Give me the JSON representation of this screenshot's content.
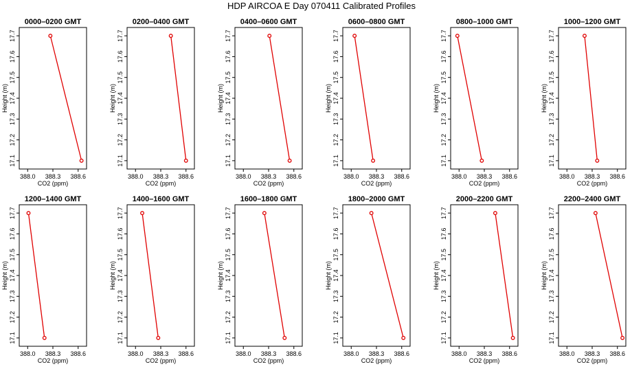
{
  "title": "HDP AIRCOA E  Day 070411  Calibrated Profiles",
  "colors": {
    "series": "#e00000",
    "axis": "#000000",
    "frame": "#000000"
  },
  "chart_data": [
    {
      "type": "line",
      "title": "0000–0200 GMT",
      "xlabel": "CO2 (ppm)",
      "ylabel": "Height (m)",
      "xlim": [
        387.9,
        388.7
      ],
      "ylim": [
        17.06,
        17.74
      ],
      "x_ticks": [
        "388.0",
        "388.3",
        "388.6"
      ],
      "y_ticks": [
        "17.1",
        "17.2",
        "17.3",
        "17.4",
        "17.5",
        "17.6",
        "17.7"
      ],
      "points": [
        {
          "x": 388.27,
          "y": 17.7
        },
        {
          "x": 388.64,
          "y": 17.1
        }
      ]
    },
    {
      "type": "line",
      "title": "0200–0400 GMT",
      "xlabel": "CO2 (ppm)",
      "ylabel": "Height (m)",
      "xlim": [
        387.9,
        388.7
      ],
      "ylim": [
        17.06,
        17.74
      ],
      "x_ticks": [
        "388.0",
        "388.3",
        "388.6"
      ],
      "y_ticks": [
        "17.1",
        "17.2",
        "17.3",
        "17.4",
        "17.5",
        "17.6",
        "17.7"
      ],
      "points": [
        {
          "x": 388.42,
          "y": 17.7
        },
        {
          "x": 388.6,
          "y": 17.1
        }
      ]
    },
    {
      "type": "line",
      "title": "0400–0600 GMT",
      "xlabel": "CO2 (ppm)",
      "ylabel": "Height (m)",
      "xlim": [
        387.9,
        388.7
      ],
      "ylim": [
        17.06,
        17.74
      ],
      "x_ticks": [
        "388.0",
        "388.3",
        "388.6"
      ],
      "y_ticks": [
        "17.1",
        "17.2",
        "17.3",
        "17.4",
        "17.5",
        "17.6",
        "17.7"
      ],
      "points": [
        {
          "x": 388.31,
          "y": 17.7
        },
        {
          "x": 388.55,
          "y": 17.1
        }
      ]
    },
    {
      "type": "line",
      "title": "0600–0800 GMT",
      "xlabel": "CO2 (ppm)",
      "ylabel": "Height (m)",
      "xlim": [
        387.9,
        388.7
      ],
      "ylim": [
        17.06,
        17.74
      ],
      "x_ticks": [
        "388.0",
        "388.3",
        "388.6"
      ],
      "y_ticks": [
        "17.1",
        "17.2",
        "17.3",
        "17.4",
        "17.5",
        "17.6",
        "17.7"
      ],
      "points": [
        {
          "x": 388.04,
          "y": 17.7
        },
        {
          "x": 388.26,
          "y": 17.1
        }
      ]
    },
    {
      "type": "line",
      "title": "0800–1000 GMT",
      "xlabel": "CO2 (ppm)",
      "ylabel": "Height (m)",
      "xlim": [
        387.9,
        388.7
      ],
      "ylim": [
        17.06,
        17.74
      ],
      "x_ticks": [
        "388.0",
        "388.3",
        "388.6"
      ],
      "y_ticks": [
        "17.1",
        "17.2",
        "17.3",
        "17.4",
        "17.5",
        "17.6",
        "17.7"
      ],
      "points": [
        {
          "x": 387.98,
          "y": 17.7
        },
        {
          "x": 388.27,
          "y": 17.1
        }
      ]
    },
    {
      "type": "line",
      "title": "1000–1200 GMT",
      "xlabel": "CO2 (ppm)",
      "ylabel": "Height (m)",
      "xlim": [
        387.9,
        388.7
      ],
      "ylim": [
        17.06,
        17.74
      ],
      "x_ticks": [
        "388.0",
        "388.3",
        "388.6"
      ],
      "y_ticks": [
        "17.1",
        "17.2",
        "17.3",
        "17.4",
        "17.5",
        "17.6",
        "17.7"
      ],
      "points": [
        {
          "x": 388.21,
          "y": 17.7
        },
        {
          "x": 388.36,
          "y": 17.1
        }
      ]
    },
    {
      "type": "line",
      "title": "1200–1400 GMT",
      "xlabel": "CO2 (ppm)",
      "ylabel": "Height (m)",
      "xlim": [
        387.9,
        388.7
      ],
      "ylim": [
        17.06,
        17.74
      ],
      "x_ticks": [
        "388.0",
        "388.3",
        "388.6"
      ],
      "y_ticks": [
        "17.1",
        "17.2",
        "17.3",
        "17.4",
        "17.5",
        "17.6",
        "17.7"
      ],
      "points": [
        {
          "x": 388.01,
          "y": 17.7
        },
        {
          "x": 388.2,
          "y": 17.1
        }
      ]
    },
    {
      "type": "line",
      "title": "1400–1600 GMT",
      "xlabel": "CO2 (ppm)",
      "ylabel": "Height (m)",
      "xlim": [
        387.9,
        388.7
      ],
      "ylim": [
        17.06,
        17.74
      ],
      "x_ticks": [
        "388.0",
        "388.3",
        "388.6"
      ],
      "y_ticks": [
        "17.1",
        "17.2",
        "17.3",
        "17.4",
        "17.5",
        "17.6",
        "17.7"
      ],
      "points": [
        {
          "x": 388.08,
          "y": 17.7
        },
        {
          "x": 388.27,
          "y": 17.1
        }
      ]
    },
    {
      "type": "line",
      "title": "1600–1800 GMT",
      "xlabel": "CO2 (ppm)",
      "ylabel": "Height (m)",
      "xlim": [
        387.9,
        388.7
      ],
      "ylim": [
        17.06,
        17.74
      ],
      "x_ticks": [
        "388.0",
        "388.3",
        "388.6"
      ],
      "y_ticks": [
        "17.1",
        "17.2",
        "17.3",
        "17.4",
        "17.5",
        "17.6",
        "17.7"
      ],
      "points": [
        {
          "x": 388.25,
          "y": 17.7
        },
        {
          "x": 388.49,
          "y": 17.1
        }
      ]
    },
    {
      "type": "line",
      "title": "1800–2000 GMT",
      "xlabel": "CO2 (ppm)",
      "ylabel": "Height (m)",
      "xlim": [
        387.9,
        388.7
      ],
      "ylim": [
        17.06,
        17.74
      ],
      "x_ticks": [
        "388.0",
        "388.3",
        "388.6"
      ],
      "y_ticks": [
        "17.1",
        "17.2",
        "17.3",
        "17.4",
        "17.5",
        "17.6",
        "17.7"
      ],
      "points": [
        {
          "x": 388.24,
          "y": 17.7
        },
        {
          "x": 388.62,
          "y": 17.1
        }
      ]
    },
    {
      "type": "line",
      "title": "2000–2200 GMT",
      "xlabel": "CO2 (ppm)",
      "ylabel": "Height (m)",
      "xlim": [
        387.9,
        388.7
      ],
      "ylim": [
        17.06,
        17.74
      ],
      "x_ticks": [
        "388.0",
        "388.3",
        "388.6"
      ],
      "y_ticks": [
        "17.1",
        "17.2",
        "17.3",
        "17.4",
        "17.5",
        "17.6",
        "17.7"
      ],
      "points": [
        {
          "x": 388.43,
          "y": 17.7
        },
        {
          "x": 388.64,
          "y": 17.1
        }
      ]
    },
    {
      "type": "line",
      "title": "2200–2400 GMT",
      "xlabel": "CO2 (ppm)",
      "ylabel": "Height (m)",
      "xlim": [
        387.9,
        388.7
      ],
      "ylim": [
        17.06,
        17.74
      ],
      "x_ticks": [
        "388.0",
        "388.3",
        "388.6"
      ],
      "y_ticks": [
        "17.1",
        "17.2",
        "17.3",
        "17.4",
        "17.5",
        "17.6",
        "17.7"
      ],
      "points": [
        {
          "x": 388.34,
          "y": 17.7
        },
        {
          "x": 388.66,
          "y": 17.1
        }
      ]
    }
  ]
}
